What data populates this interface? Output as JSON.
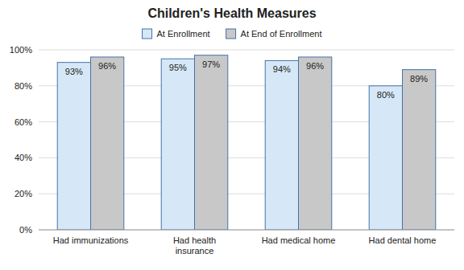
{
  "chart_data": {
    "type": "bar",
    "title": "Children's Health Measures",
    "categories": [
      "Had immunizations",
      "Had health\ninsurance",
      "Had medical home",
      "Had dental home"
    ],
    "series": [
      {
        "name": "At Enrollment",
        "color": "#d6e8f7",
        "values": [
          93,
          95,
          94,
          80
        ],
        "value_labels": [
          "93%",
          "95%",
          "94%",
          "80%"
        ]
      },
      {
        "name": "At End of Enrollment",
        "color": "#c8c8c8",
        "values": [
          96,
          97,
          96,
          89
        ],
        "value_labels": [
          "96%",
          "97%",
          "96%",
          "89%"
        ]
      }
    ],
    "ylim": [
      0,
      100
    ],
    "yticks": [
      {
        "value": 0,
        "label": "0%"
      },
      {
        "value": 20,
        "label": "20%"
      },
      {
        "value": 40,
        "label": "40%"
      },
      {
        "value": 60,
        "label": "60%"
      },
      {
        "value": 80,
        "label": "80%"
      },
      {
        "value": 100,
        "label": "100%"
      }
    ],
    "grid": true,
    "legend": "top",
    "data_labels": true
  }
}
